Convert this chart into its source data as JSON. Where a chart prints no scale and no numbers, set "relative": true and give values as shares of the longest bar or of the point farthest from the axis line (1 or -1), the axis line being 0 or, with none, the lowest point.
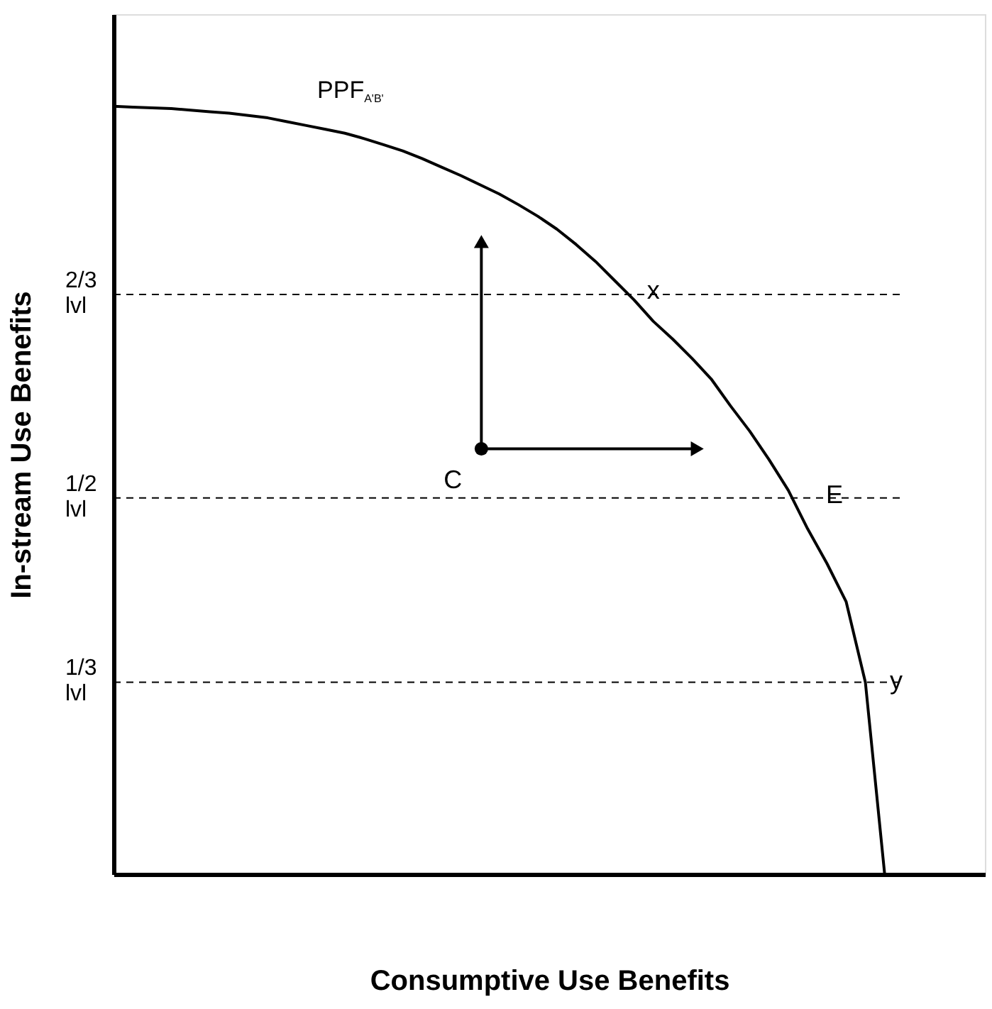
{
  "chart_data": {
    "type": "line",
    "relative": true,
    "xlabel": "Consumptive Use Benefits",
    "ylabel": "In-stream Use Benefits",
    "categories": [
      null,
      null,
      null,
      null,
      null,
      null,
      null,
      null,
      null,
      null,
      null,
      null,
      null,
      null,
      null,
      null,
      null,
      null,
      null,
      null,
      null,
      null,
      null,
      null,
      null,
      null,
      null,
      null,
      null,
      null,
      null,
      null,
      null,
      null,
      null,
      null,
      null,
      null,
      null,
      null,
      null
    ],
    "series": [
      {
        "color": "#000000",
        "values": [
          1,
          0.999,
          0.998,
          0.997,
          0.995,
          0.993,
          0.991,
          0.988,
          0.985,
          0.98,
          0.975,
          0.97,
          0.965,
          0.958,
          0.95,
          0.942,
          0.932,
          0.921,
          0.91,
          0.898,
          0.886,
          0.872,
          0.857,
          0.84,
          0.82,
          0.798,
          0.773,
          0.748,
          0.72,
          0.697,
          0.672,
          0.645,
          0.61,
          0.577,
          0.54,
          0.5,
          0.45,
          0.405,
          0.355,
          0.25,
          0
        ]
      }
    ],
    "ref_lines": [
      {
        "axis": "y",
        "value": 0.755,
        "label": "2/3\nlvl",
        "line_style": "dashed",
        "color": "#000000"
      },
      {
        "axis": "y",
        "value": 0.49,
        "label": "1/2\nlvl",
        "line_style": "dashed",
        "color": "#000000"
      },
      {
        "axis": "y",
        "value": 0.25,
        "label": "1/3\nlvl",
        "line_style": "dashed",
        "color": "#000000"
      }
    ],
    "annotations": [
      "PPF$_{A'B'}$",
      {
        "text": "x",
        "y": 0.759
      },
      {
        "text": "E",
        "y": 0.493
      },
      {
        "text": "y",
        "y": 0.25
      },
      "C"
    ]
  }
}
